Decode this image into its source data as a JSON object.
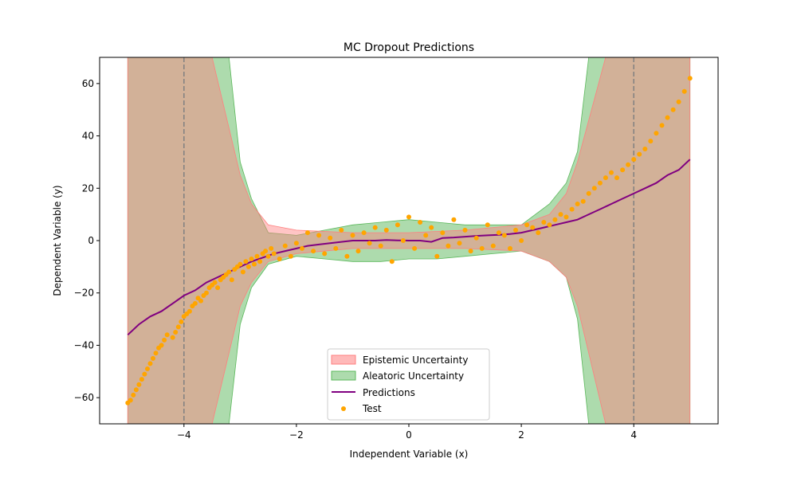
{
  "chart_data": {
    "type": "line",
    "title": "MC Dropout Predictions",
    "xlabel": "Independent Variable (x)",
    "ylabel": "Dependent Variable (y)",
    "xlim": [
      -5.5,
      5.5
    ],
    "ylim": [
      -70,
      70
    ],
    "x_ticks": [
      -4,
      -2,
      0,
      2,
      4
    ],
    "x_tick_labels": [
      "−4",
      "−2",
      "0",
      "2",
      "4"
    ],
    "y_ticks": [
      -60,
      -40,
      -20,
      0,
      20,
      40,
      60
    ],
    "y_tick_labels": [
      "−60",
      "−40",
      "−20",
      "0",
      "20",
      "40",
      "60"
    ],
    "grid": false,
    "legend_position": "lower center",
    "vertical_lines": [
      -4,
      4
    ],
    "colors": {
      "epistemic": "#ff7f7f",
      "aleatoric": "#5cb85c",
      "prediction": "#800080",
      "test": "#ffa500",
      "vline": "#808080"
    },
    "series": [
      {
        "name": "Epistemic Uncertainty",
        "kind": "band",
        "x": [
          -5.0,
          -4.0,
          -3.5,
          -3.0,
          -2.8,
          -2.5,
          -2.0,
          -1.0,
          0.0,
          1.0,
          2.0,
          2.5,
          2.8,
          3.0,
          3.5,
          4.0,
          5.0
        ],
        "lower": [
          -70,
          -70,
          -70,
          -25,
          -16,
          -8,
          -5,
          -3,
          -3,
          -3,
          -4,
          -8,
          -14,
          -25,
          -70,
          -70,
          -70
        ],
        "upper": [
          70,
          70,
          70,
          25,
          14,
          6,
          4,
          3,
          3,
          4,
          6,
          10,
          18,
          30,
          70,
          70,
          70
        ]
      },
      {
        "name": "Aleatoric Uncertainty",
        "kind": "band",
        "x": [
          -5.0,
          -4.0,
          -3.5,
          -3.2,
          -3.0,
          -2.8,
          -2.5,
          -2.0,
          -1.5,
          -1.0,
          -0.5,
          0.0,
          0.5,
          1.0,
          1.5,
          2.0,
          2.5,
          2.8,
          3.0,
          3.2,
          3.5,
          4.0,
          5.0
        ],
        "lower": [
          -70,
          -70,
          -70,
          -70,
          -32,
          -18,
          -9,
          -6,
          -7,
          -8,
          -8,
          -7,
          -7,
          -6,
          -5,
          -4,
          -8,
          -14,
          -30,
          -70,
          -70,
          -70,
          -70
        ],
        "upper": [
          70,
          70,
          70,
          70,
          30,
          16,
          3,
          2,
          4,
          6,
          7,
          8,
          7,
          6,
          6,
          6,
          14,
          22,
          34,
          70,
          70,
          70,
          70
        ]
      },
      {
        "name": "Predictions",
        "kind": "line",
        "x": [
          -5.0,
          -4.8,
          -4.6,
          -4.4,
          -4.2,
          -4.0,
          -3.8,
          -3.6,
          -3.4,
          -3.2,
          -3.0,
          -2.8,
          -2.6,
          -2.4,
          -2.2,
          -2.0,
          -1.8,
          -1.6,
          -1.4,
          -1.2,
          -1.0,
          -0.8,
          -0.6,
          -0.4,
          -0.2,
          0.0,
          0.2,
          0.4,
          0.6,
          0.8,
          1.0,
          1.2,
          1.4,
          1.6,
          1.8,
          2.0,
          2.2,
          2.4,
          2.6,
          2.8,
          3.0,
          3.2,
          3.4,
          3.6,
          3.8,
          4.0,
          4.2,
          4.4,
          4.6,
          4.8,
          5.0
        ],
        "y": [
          -36,
          -32,
          -29,
          -27,
          -24,
          -21,
          -19,
          -16,
          -14,
          -12,
          -10,
          -8,
          -6.5,
          -5,
          -4,
          -3,
          -2,
          -1.5,
          -1,
          -0.5,
          0,
          0,
          0,
          0.2,
          0.1,
          0,
          0,
          -0.5,
          1,
          1.2,
          1.5,
          1.8,
          2,
          2.2,
          2.5,
          3,
          4,
          5,
          6,
          7,
          8,
          10,
          12,
          14,
          16,
          18,
          20,
          22,
          25,
          27,
          31
        ]
      },
      {
        "name": "Test",
        "kind": "scatter",
        "x": [
          -5.0,
          -4.95,
          -4.9,
          -4.85,
          -4.8,
          -4.75,
          -4.7,
          -4.65,
          -4.6,
          -4.55,
          -4.5,
          -4.45,
          -4.4,
          -4.35,
          -4.3,
          -4.2,
          -4.15,
          -4.1,
          -4.05,
          -4.0,
          -3.95,
          -3.9,
          -3.85,
          -3.8,
          -3.75,
          -3.7,
          -3.65,
          -3.6,
          -3.55,
          -3.5,
          -3.45,
          -3.4,
          -3.35,
          -3.3,
          -3.25,
          -3.2,
          -3.15,
          -3.1,
          -3.05,
          -3.0,
          -2.95,
          -2.9,
          -2.85,
          -2.8,
          -2.75,
          -2.7,
          -2.65,
          -2.6,
          -2.55,
          -2.5,
          -2.45,
          -2.4,
          -2.3,
          -2.2,
          -2.1,
          -2.0,
          -1.9,
          -1.8,
          -1.7,
          -1.6,
          -1.5,
          -1.4,
          -1.3,
          -1.2,
          -1.1,
          -1.0,
          -0.9,
          -0.8,
          -0.7,
          -0.6,
          -0.5,
          -0.4,
          -0.3,
          -0.2,
          -0.1,
          0.0,
          0.1,
          0.2,
          0.3,
          0.4,
          0.5,
          0.6,
          0.7,
          0.8,
          0.9,
          1.0,
          1.1,
          1.2,
          1.3,
          1.4,
          1.5,
          1.6,
          1.7,
          1.8,
          1.9,
          2.0,
          2.1,
          2.2,
          2.3,
          2.4,
          2.5,
          2.6,
          2.7,
          2.8,
          2.9,
          3.0,
          3.1,
          3.2,
          3.3,
          3.4,
          3.5,
          3.6,
          3.7,
          3.8,
          3.9,
          4.0,
          4.1,
          4.2,
          4.3,
          4.4,
          4.5,
          4.6,
          4.7,
          4.8,
          4.9,
          5.0
        ],
        "y": [
          -62,
          -61,
          -59,
          -57,
          -55,
          -53,
          -51,
          -49,
          -47,
          -45,
          -43,
          -41,
          -40,
          -38,
          -36,
          -37,
          -35,
          -33,
          -31,
          -29,
          -28,
          -27,
          -25,
          -24,
          -22,
          -23,
          -21,
          -20,
          -18,
          -17,
          -16,
          -18,
          -15,
          -14,
          -13,
          -12,
          -15,
          -11,
          -10,
          -9,
          -12,
          -8,
          -10,
          -7,
          -9,
          -6,
          -8,
          -5,
          -4,
          -6,
          -3,
          -5,
          -7,
          -2,
          -6,
          -1,
          -3,
          3,
          -4,
          2,
          -5,
          1,
          -3,
          4,
          -6,
          2,
          -4,
          3,
          -1,
          5,
          -2,
          4,
          -8,
          6,
          0,
          9,
          -3,
          7,
          2,
          5,
          -6,
          3,
          -2,
          8,
          -1,
          4,
          -4,
          1,
          -3,
          6,
          -2,
          3,
          2,
          -3,
          4,
          0,
          6,
          5,
          3,
          7,
          6,
          8,
          10,
          9,
          12,
          14,
          15,
          18,
          20,
          22,
          24,
          26,
          24,
          27,
          29,
          31,
          33,
          35,
          38,
          41,
          44,
          47,
          50,
          53,
          57,
          62
        ]
      }
    ]
  }
}
